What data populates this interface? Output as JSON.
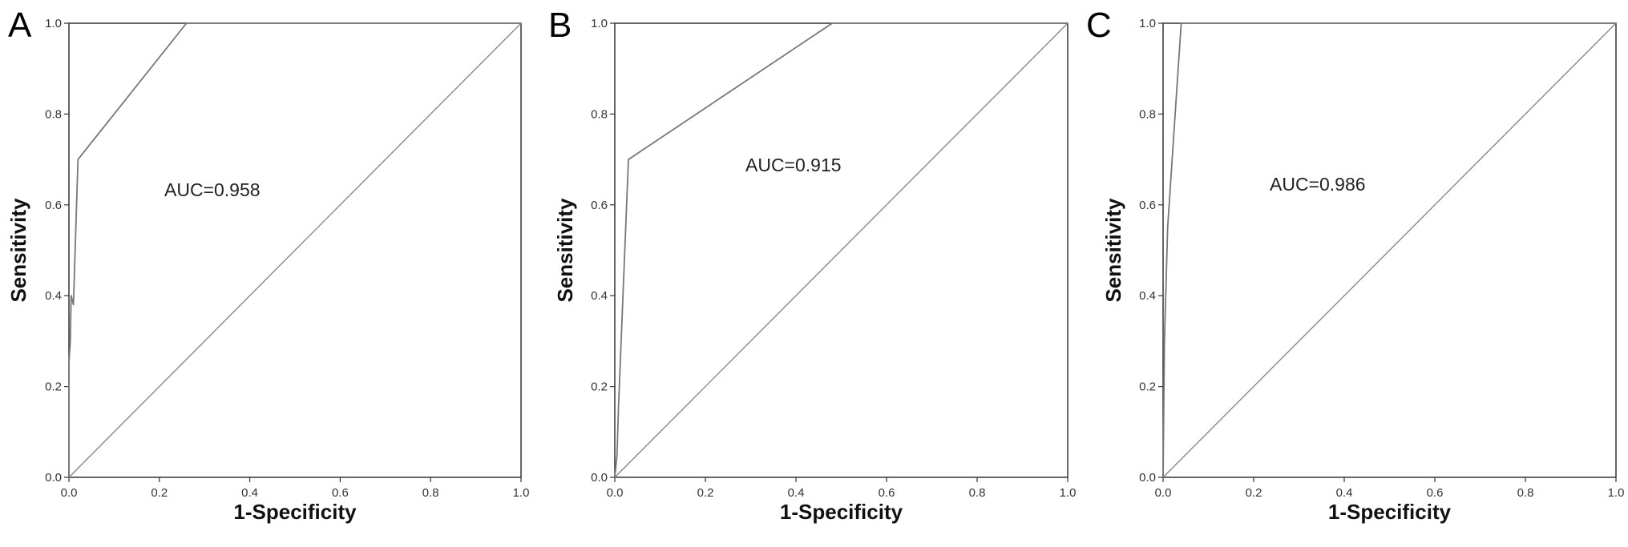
{
  "chart_data": [
    {
      "panel": "A",
      "type": "line",
      "xlabel": "1-Specificity",
      "ylabel": "Sensitivity",
      "xlim": [
        0,
        1
      ],
      "ylim": [
        0,
        1
      ],
      "xticks": [
        "0.0",
        "0.2",
        "0.4",
        "0.6",
        "0.8",
        "1.0"
      ],
      "yticks": [
        "0.0",
        "0.2",
        "0.4",
        "0.6",
        "0.8",
        "1.0"
      ],
      "annotation": "AUC=0.958",
      "series": [
        {
          "x": [
            0.0,
            0.0,
            0.003,
            0.005,
            0.01,
            0.02,
            0.26,
            1.0
          ],
          "y": [
            0.0,
            0.25,
            0.3,
            0.4,
            0.38,
            0.7,
            1.0,
            1.0
          ]
        },
        {
          "x": [
            0,
            1
          ],
          "y": [
            0,
            1
          ]
        }
      ],
      "grid": false
    },
    {
      "panel": "B",
      "type": "line",
      "xlabel": "1-Specificity",
      "ylabel": "Sensitivity",
      "xlim": [
        0,
        1
      ],
      "ylim": [
        0,
        1
      ],
      "xticks": [
        "0.0",
        "0.2",
        "0.4",
        "0.6",
        "0.8",
        "1.0"
      ],
      "yticks": [
        "0.0",
        "0.2",
        "0.4",
        "0.6",
        "0.8",
        "1.0"
      ],
      "annotation": "AUC=0.915",
      "series": [
        {
          "x": [
            0.0,
            0.005,
            0.008,
            0.03,
            0.48,
            1.0
          ],
          "y": [
            0.0,
            0.05,
            0.15,
            0.7,
            1.0,
            1.0
          ]
        },
        {
          "x": [
            0,
            1
          ],
          "y": [
            0,
            1
          ]
        }
      ],
      "grid": false
    },
    {
      "panel": "C",
      "type": "line",
      "xlabel": "1-Specificity",
      "ylabel": "Sensitivity",
      "xlim": [
        0,
        1
      ],
      "ylim": [
        0,
        1
      ],
      "xticks": [
        "0.0",
        "0.2",
        "0.4",
        "0.6",
        "0.8",
        "1.0"
      ],
      "yticks": [
        "0.0",
        "0.2",
        "0.4",
        "0.6",
        "0.8",
        "1.0"
      ],
      "annotation": "AUC=0.986",
      "series": [
        {
          "x": [
            0.0,
            0.003,
            0.01,
            0.02,
            0.04,
            1.0
          ],
          "y": [
            0.0,
            0.3,
            0.55,
            0.7,
            1.0,
            1.0
          ]
        },
        {
          "x": [
            0,
            1
          ],
          "y": [
            0,
            1
          ]
        }
      ],
      "grid": false
    }
  ],
  "colors": {
    "roc_curve": "#777777",
    "reference_line": "#888888",
    "frame": "#333333"
  }
}
